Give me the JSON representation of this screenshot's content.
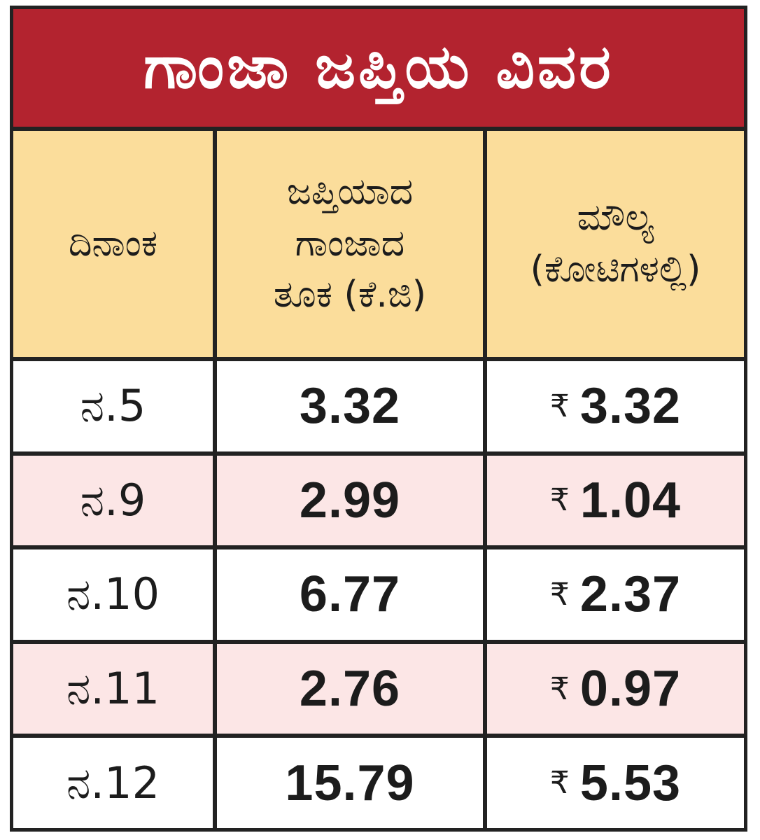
{
  "title": "ಗಾಂಜಾ ಜಪ್ತಿಯ ವಿವರ",
  "headers": {
    "date": [
      "ದಿನಾಂಕ"
    ],
    "weight": [
      "ಜಪ್ತಿಯಾದ",
      "ಗಾಂಜಾದ",
      "ತೂಕ (ಕೆ.ಜಿ)"
    ],
    "value": [
      "ಮೌಲ್ಯ",
      "(ಕೋಟಿಗಳಲ್ಲಿ)"
    ]
  },
  "currency_symbol": "₹",
  "colors": {
    "title_bg": "#b3232f",
    "header_bg": "#fbdd9b",
    "row_alt_bg": "#fce6e6",
    "border": "#222222"
  },
  "rows": [
    {
      "date": "ನ.5",
      "weight": "3.32",
      "value": "3.32"
    },
    {
      "date": "ನ.9",
      "weight": "2.99",
      "value": "1.04"
    },
    {
      "date": "ನ.10",
      "weight": "6.77",
      "value": "2.37"
    },
    {
      "date": "ನ.11",
      "weight": "2.76",
      "value": "0.97"
    },
    {
      "date": "ನ.12",
      "weight": "15.79",
      "value": "5.53"
    }
  ]
}
